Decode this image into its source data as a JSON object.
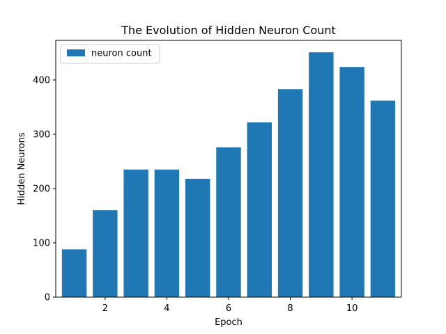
{
  "chart_data": {
    "type": "bar",
    "title": "The Evolution of Hidden Neuron Count",
    "xlabel": "Epoch",
    "ylabel": "Hidden Neurons",
    "x": [
      1,
      2,
      3,
      4,
      5,
      6,
      7,
      8,
      9,
      10,
      11
    ],
    "series": [
      {
        "name": "neuron count",
        "values": [
          88,
          160,
          235,
          235,
          218,
          276,
          322,
          383,
          451,
          424,
          362
        ],
        "color": "#1f77b4"
      }
    ],
    "xlim": [
      0.4,
      11.6
    ],
    "ylim": [
      0,
      473
    ],
    "xticks": [
      2,
      4,
      6,
      8,
      10
    ],
    "yticks": [
      0,
      100,
      200,
      300,
      400
    ],
    "grid": false,
    "legend_position": "top-left"
  }
}
